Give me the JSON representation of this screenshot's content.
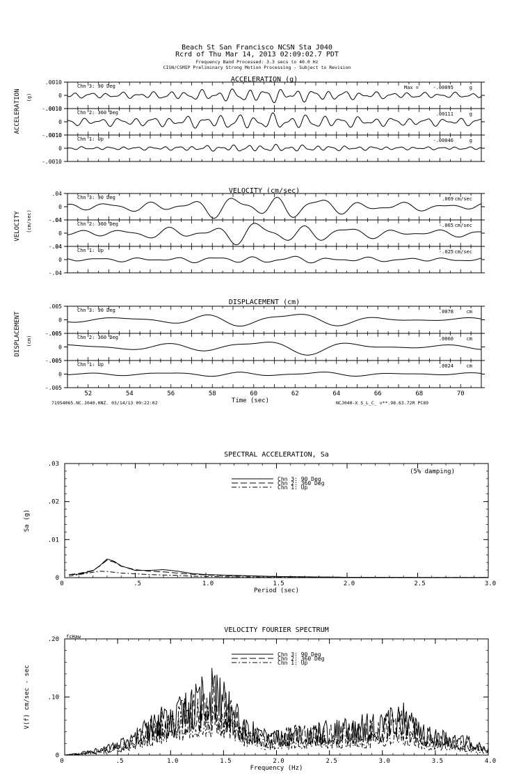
{
  "header": {
    "line1": "Beach St San Francisco    NCSN Sta J040",
    "line2": "Rcrd of Thu Mar 14, 2013 02:09:02.7 PDT",
    "line3": "Frequency Band Processed: 3.3 secs to 40.0 Hz",
    "line4": "CISN/CSMIP Preliminary Strong Motion Processing - Subject to Revision"
  },
  "chart_data": [
    {
      "type": "line",
      "title": "ACCELERATION (g)",
      "ylabel": "ACCELERATION",
      "unit_label": "(g)",
      "xlim": [
        51,
        71
      ],
      "ylim": [
        -0.001,
        0.001
      ],
      "tick_labels": [
        ".0010",
        "0",
        "-.0010"
      ],
      "max_prefix": "Max =",
      "channels": [
        {
          "name": "Chn 3: 90 Deg",
          "max": "-.00095",
          "unit": "g",
          "amp": 0.00055,
          "env": 0.4,
          "wiggle": 8.2,
          "seed": 3
        },
        {
          "name": "Chn 2: 360 Deg",
          "max": ".00111",
          "unit": "g",
          "amp": 0.00062,
          "env": 0.5,
          "wiggle": 7.6,
          "seed": 7
        },
        {
          "name": "Chn 1: Up",
          "max": "-.00046",
          "unit": "g",
          "amp": 0.00028,
          "env": 0.4,
          "wiggle": 9.4,
          "seed": 11
        }
      ]
    },
    {
      "type": "line",
      "title": "VELOCITY (cm/sec)",
      "ylabel": "VELOCITY",
      "unit_label": "(cm/sec)",
      "xlim": [
        51,
        71
      ],
      "ylim": [
        -0.04,
        0.04
      ],
      "tick_labels": [
        ".04",
        "0",
        "-.04"
      ],
      "channels": [
        {
          "name": "Chn 3: 90 Deg",
          "max": ".069",
          "unit": "cm/sec",
          "amp": 0.04,
          "env": 0.3,
          "wiggle": 3.1,
          "seed": 5
        },
        {
          "name": "Chn 2: 360 Deg",
          "max": "-.065",
          "unit": "cm/sec",
          "amp": 0.037,
          "env": 0.3,
          "wiggle": 2.9,
          "seed": 9
        },
        {
          "name": "Chn 1: Up",
          "max": "-.025",
          "unit": "cm/sec",
          "amp": 0.012,
          "env": 0.5,
          "wiggle": 3.4,
          "seed": 13
        }
      ]
    },
    {
      "type": "line",
      "title": "DISPLACEMENT (cm)",
      "ylabel": "DISPLACEMENT",
      "unit_label": "(cm)",
      "xlim": [
        51,
        71
      ],
      "ylim": [
        -0.005,
        0.005
      ],
      "xlabel": "Time (sec)",
      "xticks": [
        52,
        54,
        56,
        58,
        60,
        62,
        64,
        66,
        68,
        70
      ],
      "tick_labels": [
        ".005",
        "0",
        "-.005"
      ],
      "footer_left": "71954065.NC.J040.HNZ. 03/14/13 09:22:02",
      "footer_right": "NCJ040-X  S_L_C_  v**.98.63.72R PC89",
      "channels": [
        {
          "name": "Chn 3: 90 Deg",
          "max": ".0078",
          "unit": "cm",
          "amp": 0.0035,
          "env": 0.25,
          "wiggle": 1.5,
          "seed": 4
        },
        {
          "name": "Chn 2: 360 Deg",
          "max": ".0060",
          "unit": "cm",
          "amp": 0.0033,
          "env": 0.3,
          "wiggle": 1.4,
          "seed": 8
        },
        {
          "name": "Chn 1: Up",
          "max": ".0024",
          "unit": "cm",
          "amp": 0.0011,
          "env": 0.5,
          "wiggle": 1.7,
          "seed": 12
        }
      ]
    },
    {
      "type": "line",
      "title": "SPECTRAL ACCELERATION, Sa",
      "xlabel": "Period (sec)",
      "ylabel": "Sa (g)",
      "annotation": "(5% damping)",
      "xlim": [
        0,
        3.0
      ],
      "ylim": [
        0,
        0.03
      ],
      "xticks": [
        ".5",
        "1.0",
        "1.5",
        "2.0",
        "2.5",
        "3.0"
      ],
      "yticks": [
        "0",
        ".01",
        ".02",
        ".03"
      ],
      "legend": [
        "Chn 3: 90 Deg",
        "Chn 2: 360 Deg",
        "Chn 1: Up"
      ],
      "series": [
        {
          "name": "Chn 3: 90 Deg",
          "dash": "",
          "x": [
            0.03,
            0.1,
            0.2,
            0.25,
            0.3,
            0.35,
            0.4,
            0.5,
            0.6,
            0.7,
            0.8,
            0.9,
            1.0,
            1.2,
            1.5,
            2.0,
            2.5,
            3.0
          ],
          "y": [
            0.0008,
            0.0009,
            0.0018,
            0.0032,
            0.0049,
            0.0043,
            0.0031,
            0.0019,
            0.0019,
            0.0021,
            0.0017,
            0.0011,
            0.0008,
            0.0006,
            0.0003,
            0.0001,
            5e-05,
            3e-05
          ]
        },
        {
          "name": "Chn 2: 360 Deg",
          "dash": "9,4",
          "x": [
            0.03,
            0.1,
            0.2,
            0.25,
            0.3,
            0.35,
            0.4,
            0.5,
            0.6,
            0.7,
            0.8,
            0.9,
            1.0,
            1.2,
            1.5,
            2.0,
            2.5,
            3.0
          ],
          "y": [
            0.0008,
            0.0011,
            0.0019,
            0.0031,
            0.0046,
            0.0041,
            0.003,
            0.0021,
            0.0017,
            0.0015,
            0.0012,
            0.0009,
            0.0007,
            0.0005,
            0.0003,
            0.0001,
            5e-05,
            3e-05
          ]
        },
        {
          "name": "Chn 1: Up",
          "dash": "7,3,2,3",
          "x": [
            0.03,
            0.1,
            0.2,
            0.25,
            0.3,
            0.35,
            0.4,
            0.5,
            0.6,
            0.7,
            0.8,
            0.9,
            1.0,
            1.2,
            1.5,
            2.0,
            2.5,
            3.0
          ],
          "y": [
            0.0004,
            0.0008,
            0.0014,
            0.0017,
            0.0016,
            0.0014,
            0.0012,
            0.001,
            0.0008,
            0.0007,
            0.0006,
            0.0004,
            0.0003,
            0.0002,
            0.0001,
            5e-05,
            3e-05,
            2e-05
          ]
        }
      ]
    },
    {
      "type": "line",
      "title": "VELOCITY FOURIER SPECTRUM",
      "xlabel": "Frequency (Hz)",
      "ylabel": "V(f)   cm/sec - sec",
      "corner_label": "fcHaw",
      "xlim": [
        0,
        4.0
      ],
      "ylim": [
        0,
        0.2
      ],
      "xticks": [
        ".5",
        "1.0",
        "1.5",
        "2.0",
        "2.5",
        "3.0",
        "3.5",
        "4.0"
      ],
      "yticks": [
        "0",
        ".10",
        ".20"
      ],
      "legend": [
        "Chn 3: 90 Deg",
        "Chn 2: 360 Deg",
        "Chn 1: Up"
      ],
      "series": [
        {
          "name": "Chn 3: 90 Deg",
          "dash": "",
          "seed": 21,
          "x": [
            0,
            0.2,
            0.4,
            0.6,
            0.8,
            1.0,
            1.2,
            1.35,
            1.5,
            1.7,
            1.9,
            2.2,
            2.5,
            2.8,
            3.0,
            3.2,
            3.4,
            3.6,
            3.8,
            4.0
          ],
          "y": [
            0,
            0.004,
            0.01,
            0.02,
            0.04,
            0.055,
            0.07,
            0.09,
            0.075,
            0.04,
            0.025,
            0.03,
            0.035,
            0.04,
            0.045,
            0.055,
            0.03,
            0.025,
            0.02,
            0.008
          ]
        },
        {
          "name": "Chn 2: 360 Deg",
          "dash": "9,4",
          "seed": 31,
          "x": [
            0,
            0.2,
            0.4,
            0.6,
            0.8,
            1.0,
            1.2,
            1.35,
            1.5,
            1.7,
            1.9,
            2.2,
            2.5,
            2.8,
            3.0,
            3.2,
            3.4,
            3.6,
            3.8,
            4.0
          ],
          "y": [
            0,
            0.003,
            0.008,
            0.016,
            0.035,
            0.05,
            0.065,
            0.07,
            0.065,
            0.035,
            0.022,
            0.03,
            0.03,
            0.035,
            0.04,
            0.045,
            0.025,
            0.02,
            0.015,
            0.006
          ]
        },
        {
          "name": "Chn 1: Up",
          "dash": "7,3,2,3",
          "seed": 41,
          "x": [
            0,
            0.2,
            0.4,
            0.6,
            0.8,
            1.0,
            1.2,
            1.35,
            1.5,
            1.7,
            1.9,
            2.2,
            2.5,
            2.8,
            3.0,
            3.2,
            3.4,
            3.6,
            3.8,
            4.0
          ],
          "y": [
            0,
            0.002,
            0.006,
            0.012,
            0.025,
            0.04,
            0.05,
            0.055,
            0.045,
            0.025,
            0.015,
            0.018,
            0.02,
            0.02,
            0.025,
            0.03,
            0.015,
            0.012,
            0.01,
            0.004
          ]
        }
      ]
    }
  ]
}
